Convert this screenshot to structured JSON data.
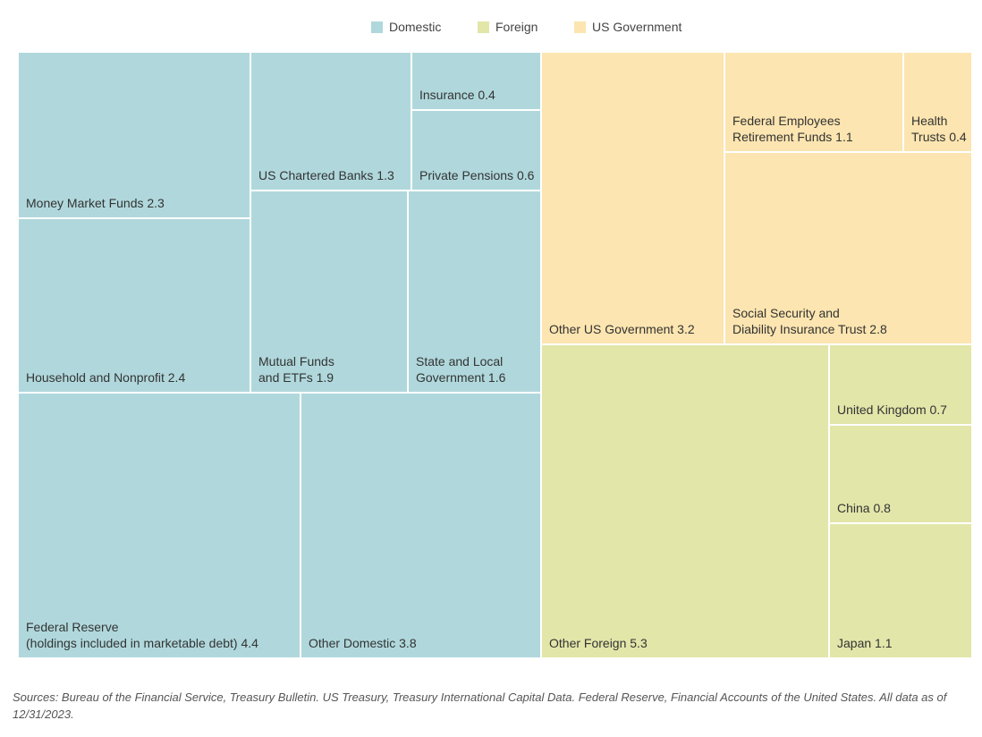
{
  "legend": [
    {
      "label": "Domestic",
      "color": "#b0d8dc"
    },
    {
      "label": "Foreign",
      "color": "#e2e6a9"
    },
    {
      "label": "US Government",
      "color": "#fce5b0"
    }
  ],
  "chart_data": {
    "type": "treemap",
    "unit": "",
    "groups": [
      {
        "name": "Domestic",
        "color": "#b0d8dc",
        "items": [
          {
            "label": "Money Market Funds",
            "value": 2.3
          },
          {
            "label": "Household and Nonprofit",
            "value": 2.4
          },
          {
            "label": "US Chartered Banks",
            "value": 1.3
          },
          {
            "label": "Insurance",
            "value": 0.4
          },
          {
            "label": "Private Pensions",
            "value": 0.6
          },
          {
            "label": "Mutual Funds\nand ETFs",
            "value": 1.9
          },
          {
            "label": "State and Local\nGovernment",
            "value": 1.6
          },
          {
            "label": "Federal Reserve\n(holdings included in marketable debt)",
            "value": 4.4
          },
          {
            "label": "Other Domestic",
            "value": 3.8
          }
        ]
      },
      {
        "name": "US Government",
        "color": "#fce5b0",
        "items": [
          {
            "label": "Other US Government",
            "value": 3.2
          },
          {
            "label": "Federal Employees\nRetirement Funds",
            "value": 1.1
          },
          {
            "label": "Health\nTrusts",
            "value": 0.4
          },
          {
            "label": "Social Security and\nDiability Insurance Trust",
            "value": 2.8
          }
        ]
      },
      {
        "name": "Foreign",
        "color": "#e2e6a9",
        "items": [
          {
            "label": "Other Foreign",
            "value": 5.3
          },
          {
            "label": "United Kingdom",
            "value": 0.7
          },
          {
            "label": "China",
            "value": 0.8
          },
          {
            "label": "Japan",
            "value": 1.1
          }
        ]
      }
    ]
  },
  "source_note": "Sources: Bureau of the Financial Service, Treasury Bulletin. US Treasury, Treasury International Capital Data. Federal Reserve, Financial Accounts of the United States. All data as of 12/31/2023."
}
